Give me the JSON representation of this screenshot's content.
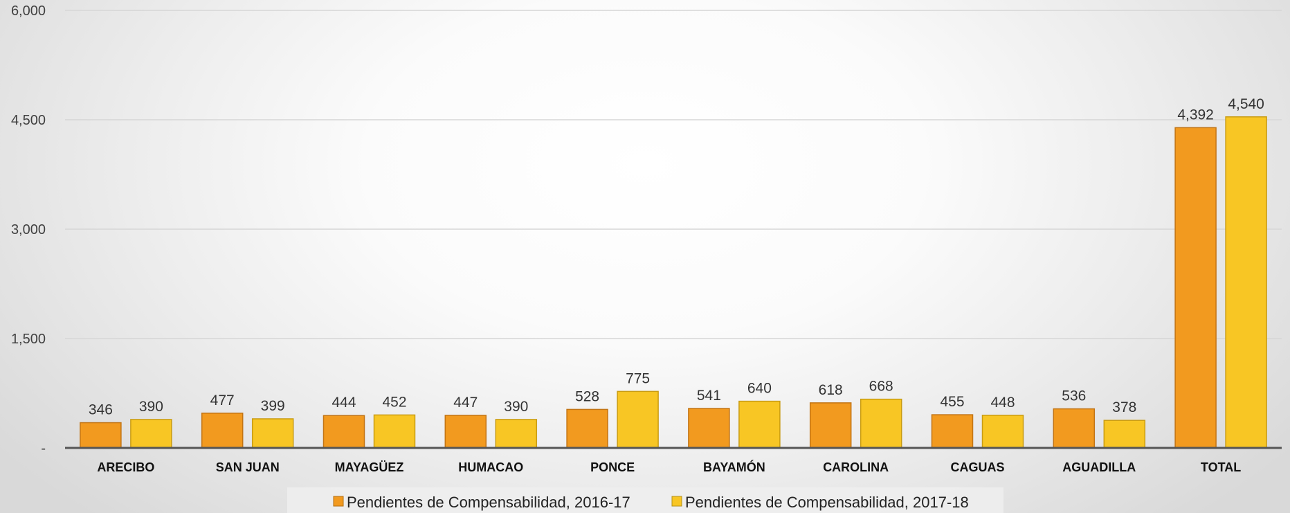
{
  "chart_data": {
    "type": "bar",
    "categories": [
      "ARECIBO",
      "SAN JUAN",
      "MAYAGÜEZ",
      "HUMACAO",
      "PONCE",
      "BAYAMÓN",
      "CAROLINA",
      "CAGUAS",
      "AGUADILLA",
      "TOTAL"
    ],
    "series": [
      {
        "name": "Pendientes de Compensabilidad, 2016-17",
        "color": "#F29A1F",
        "values": [
          346,
          477,
          444,
          447,
          528,
          541,
          618,
          455,
          536,
          4392
        ],
        "labels": [
          "346",
          "477",
          "444",
          "447",
          "528",
          "541",
          "618",
          "455",
          "536",
          "4,392"
        ]
      },
      {
        "name": "Pendientes de Compensabilidad, 2017-18",
        "color": "#F8C624",
        "values": [
          390,
          399,
          452,
          390,
          775,
          640,
          668,
          448,
          378,
          4540
        ],
        "labels": [
          "390",
          "399",
          "452",
          "390",
          "775",
          "640",
          "668",
          "448",
          "378",
          "4,540"
        ]
      }
    ],
    "ylim": [
      0,
      6000
    ],
    "yticks": [
      {
        "value": 0,
        "label": "-"
      },
      {
        "value": 1500,
        "label": "1,500"
      },
      {
        "value": 3000,
        "label": "3,000"
      },
      {
        "value": 4500,
        "label": "4,500"
      },
      {
        "value": 6000,
        "label": "6,000"
      }
    ],
    "grid": true,
    "legend_position": "bottom"
  }
}
